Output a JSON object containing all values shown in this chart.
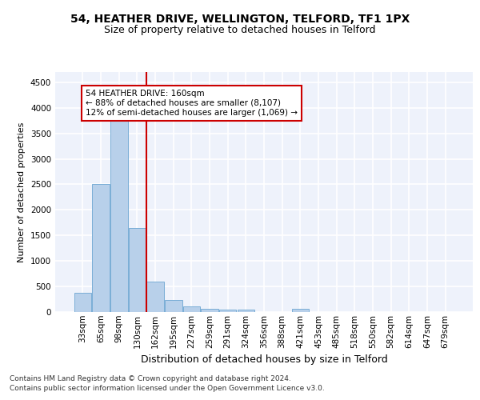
{
  "title1": "54, HEATHER DRIVE, WELLINGTON, TELFORD, TF1 1PX",
  "title2": "Size of property relative to detached houses in Telford",
  "xlabel": "Distribution of detached houses by size in Telford",
  "ylabel": "Number of detached properties",
  "categories": [
    "33sqm",
    "65sqm",
    "98sqm",
    "130sqm",
    "162sqm",
    "195sqm",
    "227sqm",
    "259sqm",
    "291sqm",
    "324sqm",
    "356sqm",
    "388sqm",
    "421sqm",
    "453sqm",
    "485sqm",
    "518sqm",
    "550sqm",
    "582sqm",
    "614sqm",
    "647sqm",
    "679sqm"
  ],
  "values": [
    370,
    2500,
    3750,
    1640,
    600,
    240,
    110,
    60,
    45,
    40,
    0,
    0,
    60,
    0,
    0,
    0,
    0,
    0,
    0,
    0,
    0
  ],
  "bar_color": "#b8d0ea",
  "bar_edge_color": "#7aaed6",
  "vline_color": "#cc0000",
  "vline_x": 3.5,
  "annotation_box_text": "54 HEATHER DRIVE: 160sqm\n← 88% of detached houses are smaller (8,107)\n12% of semi-detached houses are larger (1,069) →",
  "annotation_box_color": "#cc0000",
  "ylim": [
    0,
    4700
  ],
  "yticks": [
    0,
    500,
    1000,
    1500,
    2000,
    2500,
    3000,
    3500,
    4000,
    4500
  ],
  "bg_color": "#eef2fb",
  "grid_color": "#ffffff",
  "footer_line1": "Contains HM Land Registry data © Crown copyright and database right 2024.",
  "footer_line2": "Contains public sector information licensed under the Open Government Licence v3.0.",
  "title1_fontsize": 10,
  "title2_fontsize": 9,
  "xlabel_fontsize": 9,
  "ylabel_fontsize": 8,
  "tick_fontsize": 7.5,
  "footer_fontsize": 6.5
}
